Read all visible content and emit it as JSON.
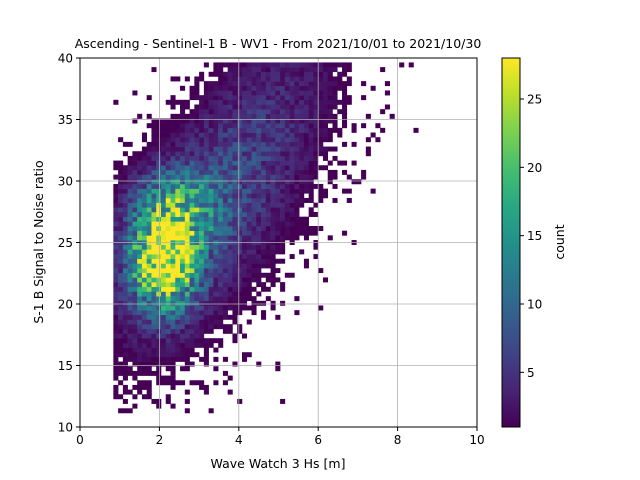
{
  "chart_data": {
    "type": "heatmap",
    "title": "Ascending - Sentinel-1 B - WV1 - From 2021/10/01 to 2021/10/30",
    "xlabel": "Wave Watch 3 Hs [m]",
    "ylabel": "S-1 B Signal to Noise ratio",
    "xlim": [
      0,
      10
    ],
    "ylim": [
      10,
      40
    ],
    "xticks": [
      0,
      2,
      4,
      6,
      8,
      10
    ],
    "yticks": [
      10,
      15,
      20,
      25,
      30,
      35,
      40
    ],
    "grid": true,
    "colorbar": {
      "label": "count",
      "range": [
        1,
        28
      ],
      "ticks": [
        5,
        10,
        15,
        20,
        25
      ],
      "colormap": "viridis"
    },
    "density_peak": {
      "x": 2.1,
      "y": 23.5,
      "count": 28
    },
    "secondary_peak": {
      "x": 2.4,
      "y": 27.8,
      "count": 22
    },
    "colors": {
      "grid": "#b0b0b0",
      "viridis_low": "#440154",
      "viridis_high": "#fde725"
    }
  }
}
